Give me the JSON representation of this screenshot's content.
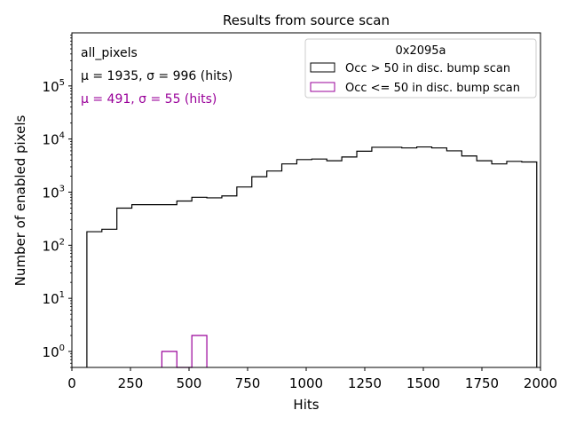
{
  "chart_data": {
    "type": "histogram-step",
    "title": "Results from source scan",
    "xlabel": "Hits",
    "ylabel": "Number of enabled pixels",
    "xlim": [
      0,
      2000
    ],
    "ylim": [
      0.5,
      1000000
    ],
    "yscale": "log",
    "x_ticks": [
      0,
      250,
      500,
      750,
      1000,
      1250,
      1500,
      1750,
      2000
    ],
    "y_ticks": [
      {
        "value": 1,
        "mantissa": "10",
        "exp": "0"
      },
      {
        "value": 10,
        "mantissa": "10",
        "exp": "1"
      },
      {
        "value": 100,
        "mantissa": "10",
        "exp": "2"
      },
      {
        "value": 1000,
        "mantissa": "10",
        "exp": "3"
      },
      {
        "value": 10000,
        "mantissa": "10",
        "exp": "4"
      },
      {
        "value": 100000,
        "mantissa": "10",
        "exp": "5"
      }
    ],
    "annotations": {
      "label": "all_pixels",
      "stats_black": "μ = 1935, σ = 996 (hits)",
      "stats_purple": "μ = 491, σ = 55 (hits)"
    },
    "legend": {
      "title": "0x2095a",
      "position": "top-right",
      "entries": [
        "Occ > 50 in disc. bump scan",
        "Occ <= 50 in disc. bump scan"
      ]
    },
    "series": [
      {
        "name": "Occ > 50 in disc. bump scan",
        "color": "#000000",
        "edges": [
          64,
          128,
          192,
          256,
          320,
          384,
          448,
          512,
          576,
          640,
          704,
          768,
          832,
          896,
          960,
          1024,
          1088,
          1152,
          1216,
          1280,
          1344,
          1408,
          1472,
          1536,
          1600,
          1664,
          1728,
          1792,
          1856,
          1920,
          1984
        ],
        "values": [
          180,
          200,
          500,
          580,
          580,
          580,
          680,
          800,
          780,
          850,
          1250,
          1950,
          2500,
          3400,
          4100,
          4200,
          3900,
          4600,
          5900,
          7000,
          7000,
          6800,
          7100,
          6800,
          6000,
          4800,
          3900,
          3400,
          3800,
          3700
        ]
      },
      {
        "name": "Occ <= 50 in disc. bump scan",
        "color": "#990099",
        "edges": [
          384,
          448,
          512,
          576
        ],
        "values": [
          1,
          0,
          2
        ]
      }
    ]
  }
}
